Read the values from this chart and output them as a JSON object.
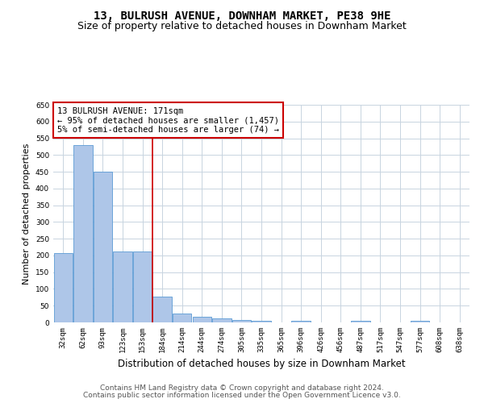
{
  "title": "13, BULRUSH AVENUE, DOWNHAM MARKET, PE38 9HE",
  "subtitle": "Size of property relative to detached houses in Downham Market",
  "xlabel": "Distribution of detached houses by size in Downham Market",
  "ylabel": "Number of detached properties",
  "categories": [
    "32sqm",
    "62sqm",
    "93sqm",
    "123sqm",
    "153sqm",
    "184sqm",
    "214sqm",
    "244sqm",
    "274sqm",
    "305sqm",
    "335sqm",
    "365sqm",
    "396sqm",
    "426sqm",
    "456sqm",
    "487sqm",
    "517sqm",
    "547sqm",
    "577sqm",
    "608sqm",
    "638sqm"
  ],
  "values": [
    207,
    530,
    450,
    212,
    212,
    78,
    27,
    17,
    13,
    7,
    5,
    0,
    5,
    0,
    0,
    5,
    0,
    0,
    5,
    0,
    0
  ],
  "bar_color": "#aec6e8",
  "bar_edge_color": "#5b9bd5",
  "vline_x_index": 5,
  "vline_color": "#cc0000",
  "annotation_text": "13 BULRUSH AVENUE: 171sqm\n← 95% of detached houses are smaller (1,457)\n5% of semi-detached houses are larger (74) →",
  "annotation_box_color": "#cc0000",
  "ylim": [
    0,
    650
  ],
  "yticks": [
    0,
    50,
    100,
    150,
    200,
    250,
    300,
    350,
    400,
    450,
    500,
    550,
    600,
    650
  ],
  "footer_line1": "Contains HM Land Registry data © Crown copyright and database right 2024.",
  "footer_line2": "Contains public sector information licensed under the Open Government Licence v3.0.",
  "background_color": "#ffffff",
  "grid_color": "#c8d4e0",
  "title_fontsize": 10,
  "subtitle_fontsize": 9,
  "ylabel_fontsize": 8,
  "xlabel_fontsize": 8.5,
  "tick_fontsize": 6.5,
  "annotation_fontsize": 7.5,
  "footer_fontsize": 6.5
}
